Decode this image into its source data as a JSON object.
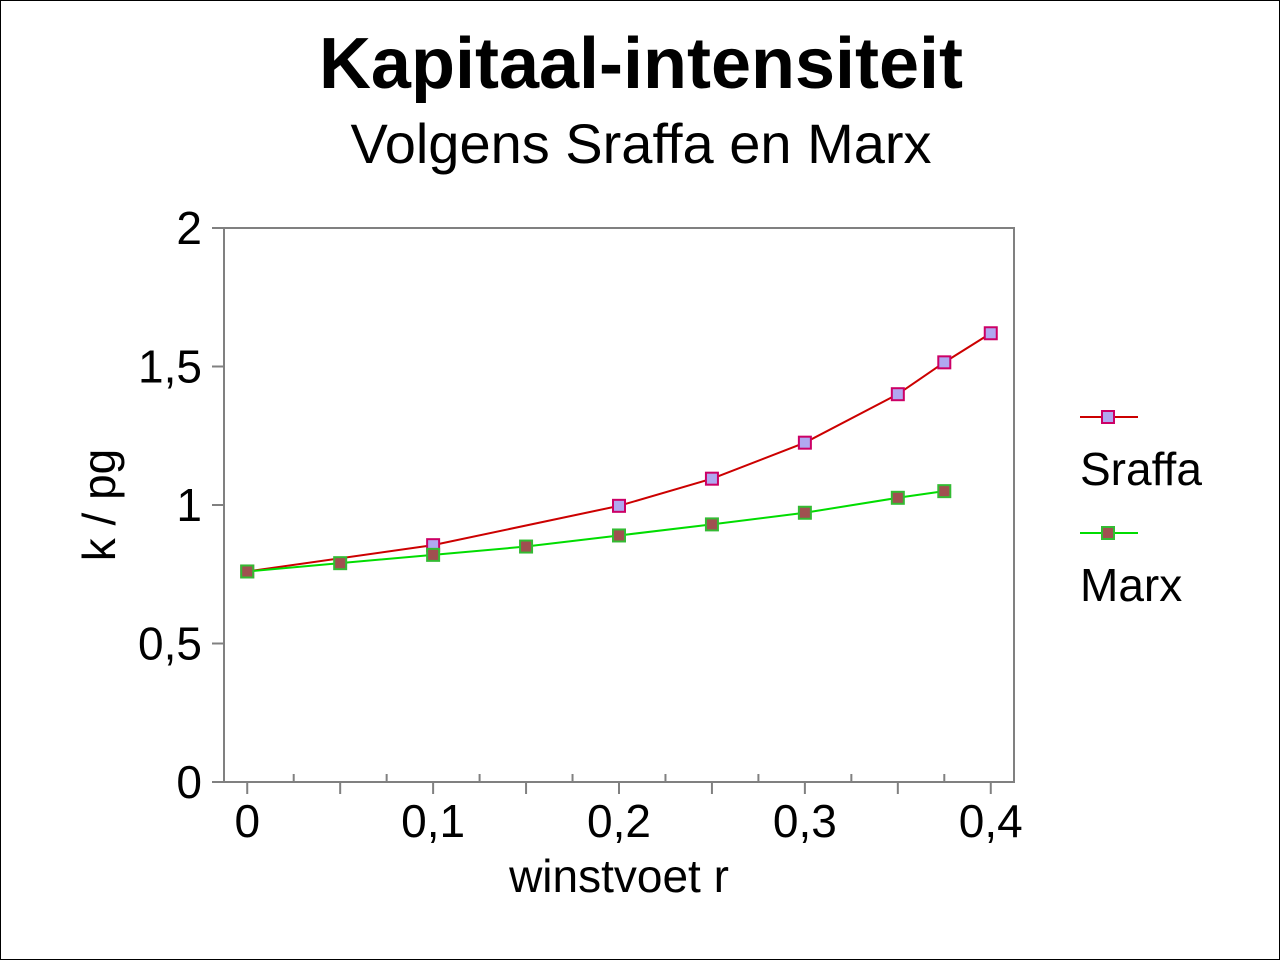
{
  "chart_data": {
    "type": "line",
    "title": "Kapitaal-intensiteit",
    "subtitle": "Volgens Sraffa en Marx",
    "xlabel": "winstvoet r",
    "ylabel": "k / pg",
    "xlim": [
      -0.0125,
      0.4125
    ],
    "ylim": [
      0,
      2
    ],
    "x_ticks": [
      {
        "value": 0,
        "label": "0"
      },
      {
        "value": 0.1,
        "label": "0,1"
      },
      {
        "value": 0.2,
        "label": "0,2"
      },
      {
        "value": 0.3,
        "label": "0,3"
      },
      {
        "value": 0.4,
        "label": "0,4"
      }
    ],
    "x_minor_ticks": [
      0.05,
      0.15,
      0.25,
      0.35
    ],
    "y_ticks": [
      {
        "value": 0,
        "label": "0"
      },
      {
        "value": 0.5,
        "label": "0,5"
      },
      {
        "value": 1,
        "label": "1"
      },
      {
        "value": 1.5,
        "label": "1,5"
      },
      {
        "value": 2,
        "label": "2"
      }
    ],
    "grid": false,
    "legend_position": "right",
    "series": [
      {
        "name": "Sraffa",
        "line_color": "#cc0000",
        "marker_fill": "#b0a8f0",
        "marker_stroke": "#cc0066",
        "x": [
          0,
          0.1,
          0.2,
          0.25,
          0.3,
          0.35,
          0.375,
          0.4
        ],
        "y": [
          0.76,
          0.855,
          0.997,
          1.095,
          1.225,
          1.4,
          1.515,
          1.62
        ]
      },
      {
        "name": "Marx",
        "line_color": "#00dd00",
        "marker_fill": "#a05050",
        "marker_stroke": "#33bb33",
        "x": [
          0,
          0.05,
          0.1,
          0.15,
          0.2,
          0.25,
          0.3,
          0.35,
          0.375
        ],
        "y": [
          0.76,
          0.79,
          0.82,
          0.85,
          0.89,
          0.93,
          0.972,
          1.026,
          1.05
        ]
      }
    ]
  }
}
